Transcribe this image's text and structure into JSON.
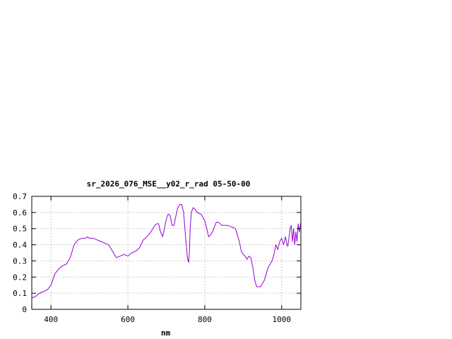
{
  "chart_data": {
    "type": "line",
    "title": "sr_2026_076_MSE__y02_r_rad 05-50-00",
    "xlabel": "nm",
    "ylabel": "",
    "xlim": [
      350,
      1050
    ],
    "ylim": [
      0,
      0.7
    ],
    "xticks": [
      400,
      600,
      800,
      1000
    ],
    "xtick_labels": [
      "400",
      "600",
      "800",
      "1000"
    ],
    "yticks": [
      0,
      0.1,
      0.2,
      0.3,
      0.4,
      0.5,
      0.6,
      0.7
    ],
    "ytick_labels": [
      "0",
      "0.1",
      "0.2",
      "0.3",
      "0.4",
      "0.5",
      "0.6",
      "0.7"
    ],
    "grid": true,
    "series": [
      {
        "color": "#9400d3",
        "x": [
          350,
          360,
          370,
          380,
          390,
          400,
          410,
          420,
          430,
          440,
          450,
          460,
          470,
          480,
          485,
          490,
          495,
          500,
          510,
          520,
          530,
          540,
          550,
          560,
          570,
          580,
          590,
          600,
          610,
          620,
          630,
          640,
          650,
          660,
          670,
          675,
          680,
          685,
          690,
          695,
          700,
          705,
          710,
          715,
          720,
          725,
          730,
          735,
          740,
          745,
          750,
          755,
          758,
          760,
          762,
          765,
          768,
          770,
          775,
          780,
          790,
          800,
          810,
          815,
          820,
          825,
          830,
          835,
          840,
          845,
          850,
          860,
          870,
          880,
          890,
          895,
          900,
          905,
          910,
          915,
          920,
          925,
          930,
          935,
          940,
          945,
          950,
          955,
          960,
          965,
          970,
          975,
          980,
          985,
          990,
          995,
          1000,
          1005,
          1010,
          1013,
          1016,
          1019,
          1022,
          1025,
          1028,
          1031,
          1034,
          1037,
          1040,
          1043,
          1046,
          1050
        ],
        "y": [
          0.07,
          0.08,
          0.1,
          0.11,
          0.12,
          0.15,
          0.22,
          0.25,
          0.27,
          0.28,
          0.32,
          0.4,
          0.43,
          0.44,
          0.44,
          0.44,
          0.45,
          0.44,
          0.44,
          0.43,
          0.42,
          0.41,
          0.4,
          0.36,
          0.32,
          0.33,
          0.34,
          0.33,
          0.35,
          0.36,
          0.38,
          0.43,
          0.45,
          0.48,
          0.52,
          0.53,
          0.53,
          0.48,
          0.45,
          0.5,
          0.56,
          0.59,
          0.58,
          0.52,
          0.52,
          0.58,
          0.63,
          0.65,
          0.65,
          0.6,
          0.45,
          0.32,
          0.29,
          0.35,
          0.5,
          0.6,
          0.62,
          0.63,
          0.62,
          0.6,
          0.59,
          0.55,
          0.45,
          0.46,
          0.48,
          0.51,
          0.54,
          0.54,
          0.53,
          0.52,
          0.52,
          0.52,
          0.51,
          0.5,
          0.42,
          0.36,
          0.34,
          0.33,
          0.31,
          0.33,
          0.32,
          0.26,
          0.18,
          0.14,
          0.14,
          0.14,
          0.16,
          0.18,
          0.22,
          0.26,
          0.28,
          0.3,
          0.34,
          0.4,
          0.37,
          0.42,
          0.44,
          0.4,
          0.45,
          0.41,
          0.39,
          0.44,
          0.5,
          0.52,
          0.42,
          0.5,
          0.4,
          0.48,
          0.42,
          0.53,
          0.48,
          0.54
        ]
      }
    ]
  }
}
